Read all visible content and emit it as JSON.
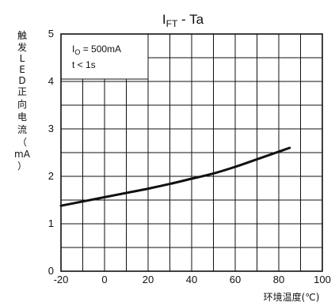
{
  "chart_data": {
    "type": "line",
    "title_main": "I",
    "title_sub": "FT",
    "title_rest": " - Ta",
    "xlabel": "环境温度(℃)",
    "ylabel_chars": [
      "触",
      "发",
      "L",
      "E",
      "D",
      "正",
      "向",
      "电",
      "流",
      "（",
      "mA",
      "）"
    ],
    "xlim": [
      -20,
      100
    ],
    "ylim": [
      0,
      5
    ],
    "x_ticks": [
      -20,
      0,
      20,
      40,
      60,
      80,
      100
    ],
    "y_ticks": [
      0,
      1,
      2,
      3,
      4,
      5
    ],
    "x_tick_labels": [
      "-20",
      "0",
      "20",
      "40",
      "60",
      "80",
      "100"
    ],
    "y_tick_labels": [
      "0",
      "1",
      "2",
      "3",
      "4",
      "5"
    ],
    "grid": true,
    "annotation": {
      "line1_main": "I",
      "line1_sub": "O",
      "line1_rest": " = 500mA",
      "line2": "t < 1s"
    },
    "series": [
      {
        "x": [
          -20,
          -10,
          0,
          10,
          20,
          30,
          40,
          50,
          60,
          70,
          80,
          85
        ],
        "y": [
          1.38,
          1.47,
          1.56,
          1.65,
          1.74,
          1.84,
          1.95,
          2.06,
          2.2,
          2.36,
          2.52,
          2.6
        ]
      }
    ],
    "line_color": "#111111"
  }
}
